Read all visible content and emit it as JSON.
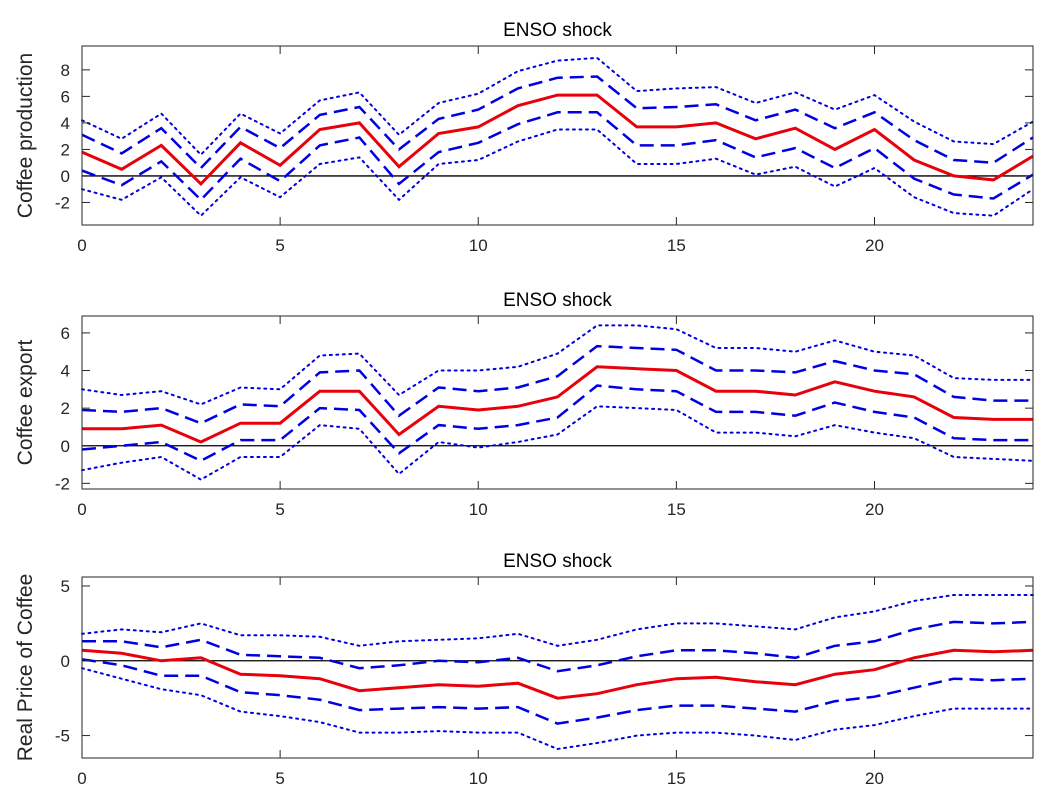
{
  "colors": {
    "point_estimate": "#e8000b",
    "bands": "#0000e0",
    "axis": "#262626",
    "zero": "#000000"
  },
  "chart_data": [
    {
      "type": "line",
      "title": "ENSO shock",
      "xlabel": "",
      "ylabel": "Coffee production",
      "xlim": [
        0,
        24
      ],
      "ylim": [
        -3.7,
        9.8
      ],
      "xticks": [
        0,
        5,
        10,
        15,
        20
      ],
      "yticks": [
        -2,
        0,
        2,
        4,
        6,
        8
      ],
      "zero_line": true,
      "x": [
        0,
        1,
        2,
        3,
        4,
        5,
        6,
        7,
        8,
        9,
        10,
        11,
        12,
        13,
        14,
        15,
        16,
        17,
        18,
        19,
        20,
        21,
        22,
        23,
        24
      ],
      "series": [
        {
          "role": "upper-outer",
          "style": "dotted",
          "values": [
            4.2,
            2.8,
            4.7,
            1.6,
            4.7,
            3.2,
            5.7,
            6.3,
            3.1,
            5.5,
            6.2,
            7.9,
            8.7,
            8.9,
            6.4,
            6.6,
            6.7,
            5.5,
            6.3,
            5.0,
            6.1,
            4.1,
            2.6,
            2.4,
            4.1
          ]
        },
        {
          "role": "upper-inner",
          "style": "dashed",
          "values": [
            3.1,
            1.7,
            3.6,
            0.6,
            3.7,
            2.1,
            4.6,
            5.2,
            2.0,
            4.3,
            5.0,
            6.6,
            7.4,
            7.5,
            5.1,
            5.2,
            5.4,
            4.2,
            5.0,
            3.6,
            4.8,
            2.7,
            1.2,
            1.0,
            2.9
          ]
        },
        {
          "role": "point-estimate",
          "style": "solid",
          "values": [
            1.8,
            0.5,
            2.3,
            -0.6,
            2.5,
            0.8,
            3.5,
            4.0,
            0.7,
            3.2,
            3.7,
            5.3,
            6.1,
            6.1,
            3.7,
            3.7,
            4.0,
            2.8,
            3.6,
            2.0,
            3.5,
            1.2,
            0.0,
            -0.3,
            1.5
          ]
        },
        {
          "role": "lower-inner",
          "style": "dashed",
          "values": [
            0.4,
            -0.7,
            1.1,
            -1.8,
            1.3,
            -0.4,
            2.3,
            2.9,
            -0.6,
            1.8,
            2.5,
            3.9,
            4.8,
            4.8,
            2.3,
            2.3,
            2.7,
            1.4,
            2.1,
            0.6,
            2.1,
            -0.2,
            -1.4,
            -1.7,
            0.1
          ]
        },
        {
          "role": "lower-outer",
          "style": "dotted",
          "values": [
            -1.0,
            -1.8,
            -0.1,
            -3.0,
            -0.1,
            -1.6,
            0.9,
            1.4,
            -1.8,
            0.9,
            1.2,
            2.6,
            3.5,
            3.5,
            0.9,
            0.9,
            1.3,
            0.1,
            0.7,
            -0.8,
            0.6,
            -1.6,
            -2.8,
            -3.0,
            -1.0
          ]
        }
      ]
    },
    {
      "type": "line",
      "title": "ENSO shock",
      "xlabel": "",
      "ylabel": "Coffee export",
      "xlim": [
        0,
        24
      ],
      "ylim": [
        -2.3,
        6.9
      ],
      "xticks": [
        0,
        5,
        10,
        15,
        20
      ],
      "yticks": [
        -2,
        0,
        2,
        4,
        6
      ],
      "zero_line": true,
      "x": [
        0,
        1,
        2,
        3,
        4,
        5,
        6,
        7,
        8,
        9,
        10,
        11,
        12,
        13,
        14,
        15,
        16,
        17,
        18,
        19,
        20,
        21,
        22,
        23,
        24
      ],
      "series": [
        {
          "role": "upper-outer",
          "style": "dotted",
          "values": [
            3.0,
            2.7,
            2.9,
            2.2,
            3.1,
            3.0,
            4.8,
            4.9,
            2.7,
            4.0,
            4.0,
            4.2,
            4.9,
            6.4,
            6.4,
            6.2,
            5.2,
            5.2,
            5.0,
            5.6,
            5.0,
            4.8,
            3.6,
            3.5,
            3.5
          ]
        },
        {
          "role": "upper-inner",
          "style": "dashed",
          "values": [
            1.9,
            1.8,
            2.0,
            1.2,
            2.2,
            2.1,
            3.9,
            4.0,
            1.6,
            3.1,
            2.9,
            3.1,
            3.7,
            5.3,
            5.2,
            5.1,
            4.0,
            4.0,
            3.9,
            4.5,
            4.0,
            3.8,
            2.6,
            2.4,
            2.4
          ]
        },
        {
          "role": "point-estimate",
          "style": "solid",
          "values": [
            0.9,
            0.9,
            1.1,
            0.2,
            1.2,
            1.2,
            2.9,
            2.9,
            0.6,
            2.1,
            1.9,
            2.1,
            2.6,
            4.2,
            4.1,
            4.0,
            2.9,
            2.9,
            2.7,
            3.4,
            2.9,
            2.6,
            1.5,
            1.4,
            1.4
          ]
        },
        {
          "role": "lower-inner",
          "style": "dashed",
          "values": [
            -0.2,
            0.0,
            0.2,
            -0.8,
            0.3,
            0.3,
            2.0,
            1.9,
            -0.4,
            1.1,
            0.9,
            1.1,
            1.5,
            3.2,
            3.0,
            2.9,
            1.8,
            1.8,
            1.6,
            2.3,
            1.8,
            1.5,
            0.4,
            0.3,
            0.3
          ]
        },
        {
          "role": "lower-outer",
          "style": "dotted",
          "values": [
            -1.3,
            -0.9,
            -0.6,
            -1.8,
            -0.6,
            -0.6,
            1.1,
            0.9,
            -1.5,
            0.2,
            -0.1,
            0.2,
            0.6,
            2.1,
            2.0,
            1.9,
            0.7,
            0.7,
            0.5,
            1.1,
            0.7,
            0.4,
            -0.6,
            -0.7,
            -0.8
          ]
        }
      ]
    },
    {
      "type": "line",
      "title": "ENSO shock",
      "xlabel": "",
      "ylabel": "Real Price of Coffee",
      "xlim": [
        0,
        24
      ],
      "ylim": [
        -6.5,
        5.6
      ],
      "xticks": [
        0,
        5,
        10,
        15,
        20
      ],
      "yticks": [
        -5,
        0,
        5
      ],
      "zero_line": true,
      "x": [
        0,
        1,
        2,
        3,
        4,
        5,
        6,
        7,
        8,
        9,
        10,
        11,
        12,
        13,
        14,
        15,
        16,
        17,
        18,
        19,
        20,
        21,
        22,
        23,
        24
      ],
      "series": [
        {
          "role": "upper-outer",
          "style": "dotted",
          "values": [
            1.8,
            2.1,
            1.9,
            2.5,
            1.7,
            1.7,
            1.6,
            1.0,
            1.3,
            1.4,
            1.5,
            1.8,
            1.0,
            1.4,
            2.1,
            2.5,
            2.5,
            2.3,
            2.1,
            2.9,
            3.3,
            4.0,
            4.4,
            4.4,
            4.4
          ]
        },
        {
          "role": "upper-inner",
          "style": "dashed",
          "values": [
            1.3,
            1.3,
            0.9,
            1.4,
            0.4,
            0.3,
            0.2,
            -0.5,
            -0.3,
            0.0,
            -0.1,
            0.2,
            -0.7,
            -0.3,
            0.3,
            0.7,
            0.7,
            0.5,
            0.2,
            1.0,
            1.3,
            2.1,
            2.6,
            2.5,
            2.6
          ]
        },
        {
          "role": "point-estimate",
          "style": "solid",
          "values": [
            0.7,
            0.5,
            0.0,
            0.2,
            -0.9,
            -1.0,
            -1.2,
            -2.0,
            -1.8,
            -1.6,
            -1.7,
            -1.5,
            -2.5,
            -2.2,
            -1.6,
            -1.2,
            -1.1,
            -1.4,
            -1.6,
            -0.9,
            -0.6,
            0.2,
            0.7,
            0.6,
            0.7
          ]
        },
        {
          "role": "lower-inner",
          "style": "dashed",
          "values": [
            0.1,
            -0.3,
            -1.0,
            -1.0,
            -2.1,
            -2.3,
            -2.6,
            -3.3,
            -3.2,
            -3.1,
            -3.2,
            -3.1,
            -4.2,
            -3.8,
            -3.3,
            -3.0,
            -3.0,
            -3.2,
            -3.4,
            -2.7,
            -2.4,
            -1.8,
            -1.2,
            -1.3,
            -1.2
          ]
        },
        {
          "role": "lower-outer",
          "style": "dotted",
          "values": [
            -0.5,
            -1.2,
            -1.9,
            -2.3,
            -3.4,
            -3.7,
            -4.1,
            -4.8,
            -4.8,
            -4.7,
            -4.8,
            -4.8,
            -5.9,
            -5.5,
            -5.0,
            -4.8,
            -4.8,
            -5.0,
            -5.3,
            -4.6,
            -4.3,
            -3.7,
            -3.2,
            -3.2,
            -3.2
          ]
        }
      ]
    }
  ]
}
